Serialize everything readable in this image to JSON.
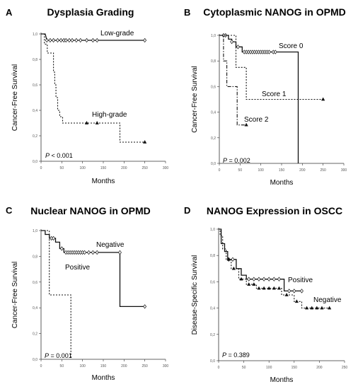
{
  "chart_data": [
    {
      "type": "line",
      "panel": "A",
      "title": "Dysplasia Grading",
      "xlabel": "Months",
      "ylabel": "Cancer-Free  Survival",
      "xlim": [
        0,
        300
      ],
      "ylim": [
        0,
        1.0
      ],
      "x_ticks": [
        "0",
        "50",
        "100",
        "150",
        "200",
        "250",
        "300"
      ],
      "y_ticks": [
        "0,0",
        "0,2",
        "0,4",
        "0,6",
        "0,8",
        "1,0"
      ],
      "p_value": {
        "prefix": "P",
        "text": " < 0.001"
      },
      "series": [
        {
          "name": "Low-grade",
          "style": "solid",
          "points": [
            [
              0,
              1.0
            ],
            [
              10,
              1.0
            ],
            [
              14,
              0.95
            ],
            [
              250,
              0.95
            ],
            [
              250,
              0.95
            ]
          ],
          "censored": [
            [
              14,
              0.95
            ],
            [
              22,
              0.95
            ],
            [
              30,
              0.95
            ],
            [
              40,
              0.95
            ],
            [
              48,
              0.95
            ],
            [
              55,
              0.95
            ],
            [
              60,
              0.95
            ],
            [
              68,
              0.95
            ],
            [
              75,
              0.95
            ],
            [
              85,
              0.95
            ],
            [
              95,
              0.95
            ],
            [
              110,
              0.95
            ],
            [
              125,
              0.95
            ],
            [
              135,
              0.95
            ],
            [
              250,
              0.95
            ]
          ],
          "censor_marker": "diamond"
        },
        {
          "name": "High-grade",
          "style": "dotted",
          "points": [
            [
              0,
              1.0
            ],
            [
              8,
              1.0
            ],
            [
              8,
              0.92
            ],
            [
              15,
              0.92
            ],
            [
              15,
              0.85
            ],
            [
              30,
              0.85
            ],
            [
              30,
              0.7
            ],
            [
              33,
              0.7
            ],
            [
              33,
              0.6
            ],
            [
              36,
              0.6
            ],
            [
              36,
              0.5
            ],
            [
              40,
              0.5
            ],
            [
              40,
              0.4
            ],
            [
              45,
              0.4
            ],
            [
              45,
              0.35
            ],
            [
              52,
              0.35
            ],
            [
              52,
              0.3
            ],
            [
              190,
              0.3
            ],
            [
              190,
              0.15
            ],
            [
              250,
              0.15
            ]
          ],
          "censored": [
            [
              110,
              0.3
            ],
            [
              135,
              0.3
            ],
            [
              250,
              0.15
            ]
          ],
          "censor_marker": "triangle"
        }
      ]
    },
    {
      "type": "line",
      "panel": "B",
      "title": "Cytoplasmic NANOG in OPMD",
      "xlabel": "Months",
      "ylabel": "Cancer-Free  Survival",
      "xlim": [
        0,
        300
      ],
      "ylim": [
        0,
        1.0
      ],
      "x_ticks": [
        "0",
        "50",
        "100",
        "150",
        "200",
        "250",
        "300"
      ],
      "y_ticks": [
        "0,0",
        "0,2",
        "0,4",
        "0,6",
        "0,8",
        "1,0"
      ],
      "p_value": {
        "prefix": "P",
        "text": " = 0.002"
      },
      "series": [
        {
          "name": "Score 0",
          "style": "solid",
          "points": [
            [
              0,
              1.0
            ],
            [
              22,
              1.0
            ],
            [
              22,
              0.97
            ],
            [
              30,
              0.97
            ],
            [
              30,
              0.95
            ],
            [
              40,
              0.95
            ],
            [
              40,
              0.91
            ],
            [
              55,
              0.91
            ],
            [
              55,
              0.87
            ],
            [
              190,
              0.87
            ],
            [
              190,
              0.0
            ]
          ],
          "censored": [
            [
              10,
              1.0
            ],
            [
              15,
              1.0
            ],
            [
              30,
              0.95
            ],
            [
              45,
              0.91
            ],
            [
              60,
              0.87
            ],
            [
              65,
              0.87
            ],
            [
              70,
              0.87
            ],
            [
              75,
              0.87
            ],
            [
              80,
              0.87
            ],
            [
              85,
              0.87
            ],
            [
              90,
              0.87
            ],
            [
              95,
              0.87
            ],
            [
              100,
              0.87
            ],
            [
              105,
              0.87
            ],
            [
              110,
              0.87
            ],
            [
              115,
              0.87
            ],
            [
              120,
              0.87
            ],
            [
              130,
              0.87
            ],
            [
              135,
              0.87
            ]
          ],
          "censor_marker": "diamond"
        },
        {
          "name": "Score 1",
          "style": "dotted",
          "points": [
            [
              0,
              1.0
            ],
            [
              40,
              1.0
            ],
            [
              40,
              0.75
            ],
            [
              65,
              0.75
            ],
            [
              65,
              0.5
            ],
            [
              250,
              0.5
            ]
          ],
          "censored": [
            [
              250,
              0.5
            ]
          ],
          "censor_marker": "triangle"
        },
        {
          "name": "Score 2",
          "style": "dashdot",
          "points": [
            [
              0,
              1.0
            ],
            [
              10,
              1.0
            ],
            [
              10,
              0.8
            ],
            [
              18,
              0.8
            ],
            [
              18,
              0.6
            ],
            [
              43,
              0.6
            ],
            [
              43,
              0.3
            ],
            [
              65,
              0.3
            ]
          ],
          "censored": [
            [
              65,
              0.3
            ]
          ],
          "censor_marker": "triangle"
        }
      ]
    },
    {
      "type": "line",
      "panel": "C",
      "title": "Nuclear NANOG in OPMD",
      "xlabel": "Months",
      "ylabel": "Cancer-Free  Survival",
      "xlim": [
        0,
        300
      ],
      "ylim": [
        0,
        1.0
      ],
      "x_ticks": [
        "0",
        "50",
        "100",
        "150",
        "200",
        "250",
        "300"
      ],
      "y_ticks": [
        "0,0",
        "0,2",
        "0,4",
        "0,6",
        "0,8",
        "1,0"
      ],
      "p_value": {
        "prefix": "P",
        "text": " = 0.001"
      },
      "series": [
        {
          "name": "Negative",
          "style": "solid",
          "points": [
            [
              0,
              1.0
            ],
            [
              10,
              1.0
            ],
            [
              10,
              0.97
            ],
            [
              20,
              0.97
            ],
            [
              20,
              0.94
            ],
            [
              35,
              0.94
            ],
            [
              35,
              0.91
            ],
            [
              45,
              0.91
            ],
            [
              45,
              0.86
            ],
            [
              55,
              0.86
            ],
            [
              55,
              0.83
            ],
            [
              190,
              0.83
            ],
            [
              190,
              0.41
            ],
            [
              250,
              0.41
            ]
          ],
          "censored": [
            [
              25,
              0.94
            ],
            [
              30,
              0.94
            ],
            [
              50,
              0.86
            ],
            [
              60,
              0.83
            ],
            [
              65,
              0.83
            ],
            [
              70,
              0.83
            ],
            [
              75,
              0.83
            ],
            [
              80,
              0.83
            ],
            [
              85,
              0.83
            ],
            [
              90,
              0.83
            ],
            [
              95,
              0.83
            ],
            [
              100,
              0.83
            ],
            [
              105,
              0.83
            ],
            [
              115,
              0.83
            ],
            [
              125,
              0.83
            ],
            [
              135,
              0.83
            ],
            [
              190,
              0.83
            ],
            [
              250,
              0.41
            ]
          ],
          "censor_marker": "diamond"
        },
        {
          "name": "Positive",
          "style": "dotted",
          "points": [
            [
              0,
              1.0
            ],
            [
              20,
              1.0
            ],
            [
              20,
              0.5
            ],
            [
              72,
              0.5
            ],
            [
              72,
              0.0
            ]
          ],
          "censored": [],
          "censor_marker": "triangle"
        }
      ]
    },
    {
      "type": "line",
      "panel": "D",
      "title": "NANOG Expression in OSCC",
      "xlabel": "Months",
      "ylabel": "Disease-Specific  Survival",
      "xlim": [
        0,
        250
      ],
      "ylim": [
        0,
        1.0
      ],
      "x_ticks": [
        "0",
        "50",
        "100",
        "150",
        "200",
        "250"
      ],
      "y_ticks": [
        "0,0",
        "0,2",
        "0,4",
        "0,6",
        "0,8",
        "1,0"
      ],
      "p_value": {
        "prefix": "P",
        "text": " = 0.389"
      },
      "series": [
        {
          "name": "Positive",
          "style": "solid",
          "points": [
            [
              0,
              1.0
            ],
            [
              5,
              1.0
            ],
            [
              5,
              0.89
            ],
            [
              12,
              0.89
            ],
            [
              12,
              0.83
            ],
            [
              18,
              0.83
            ],
            [
              18,
              0.77
            ],
            [
              35,
              0.77
            ],
            [
              35,
              0.7
            ],
            [
              45,
              0.7
            ],
            [
              45,
              0.65
            ],
            [
              55,
              0.65
            ],
            [
              55,
              0.62
            ],
            [
              130,
              0.62
            ],
            [
              130,
              0.53
            ],
            [
              165,
              0.53
            ]
          ],
          "censored": [
            [
              20,
              0.77
            ],
            [
              28,
              0.77
            ],
            [
              60,
              0.62
            ],
            [
              70,
              0.62
            ],
            [
              80,
              0.62
            ],
            [
              90,
              0.62
            ],
            [
              100,
              0.62
            ],
            [
              110,
              0.62
            ],
            [
              120,
              0.62
            ],
            [
              140,
              0.53
            ],
            [
              150,
              0.53
            ],
            [
              165,
              0.53
            ]
          ],
          "censor_marker": "diamond"
        },
        {
          "name": "Negative",
          "style": "dotted",
          "points": [
            [
              0,
              1.0
            ],
            [
              3,
              1.0
            ],
            [
              3,
              0.95
            ],
            [
              8,
              0.95
            ],
            [
              8,
              0.85
            ],
            [
              15,
              0.85
            ],
            [
              15,
              0.77
            ],
            [
              25,
              0.77
            ],
            [
              25,
              0.7
            ],
            [
              40,
              0.7
            ],
            [
              40,
              0.62
            ],
            [
              55,
              0.62
            ],
            [
              55,
              0.58
            ],
            [
              75,
              0.58
            ],
            [
              75,
              0.55
            ],
            [
              125,
              0.55
            ],
            [
              125,
              0.5
            ],
            [
              150,
              0.5
            ],
            [
              150,
              0.45
            ],
            [
              165,
              0.45
            ],
            [
              165,
              0.4
            ],
            [
              220,
              0.4
            ]
          ],
          "censored": [
            [
              20,
              0.77
            ],
            [
              30,
              0.7
            ],
            [
              45,
              0.62
            ],
            [
              60,
              0.58
            ],
            [
              70,
              0.58
            ],
            [
              80,
              0.55
            ],
            [
              90,
              0.55
            ],
            [
              100,
              0.55
            ],
            [
              110,
              0.55
            ],
            [
              120,
              0.55
            ],
            [
              135,
              0.5
            ],
            [
              155,
              0.45
            ],
            [
              175,
              0.4
            ],
            [
              185,
              0.4
            ],
            [
              195,
              0.4
            ],
            [
              205,
              0.4
            ],
            [
              220,
              0.4
            ]
          ],
          "censor_marker": "triangle"
        }
      ]
    }
  ]
}
